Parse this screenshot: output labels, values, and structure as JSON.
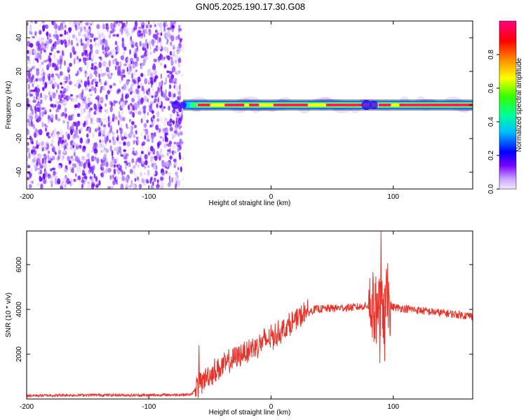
{
  "title": "GN05.2025.190.17.30.G08",
  "chart_data": [
    {
      "type": "heatmap",
      "xlabel": "Height of straight line (km)",
      "ylabel": "Frequency (Hz)",
      "xlim": [
        -200,
        165
      ],
      "ylim": [
        -50,
        50
      ],
      "xticks": [
        -200,
        -100,
        0,
        100
      ],
      "yticks": [
        -40,
        -20,
        0,
        20,
        40
      ],
      "colorbar": {
        "label": "Normalized spectral amplitude",
        "range": [
          0,
          1
        ],
        "ticks": [
          "0.0",
          "0.2",
          "0.4",
          "0.6",
          "0.8"
        ],
        "colors": [
          "#ffffff",
          "#c8a6ff",
          "#6a00ff",
          "#0000ff",
          "#00c8ff",
          "#00ff80",
          "#40ff00",
          "#ffff00",
          "#ff8000",
          "#ff0000",
          "#ff0080"
        ]
      },
      "noise_region_x": [
        -200,
        -72
      ],
      "signal_frequency_hz": 0,
      "signal_start_x": -72
    },
    {
      "type": "line",
      "xlabel": "Height of straight line (km)",
      "ylabel": "SNR (10 * v/v)",
      "xlim": [
        -200,
        165
      ],
      "ylim": [
        0,
        7500
      ],
      "xticks": [
        -200,
        -100,
        0,
        100
      ],
      "yticks": [
        2000,
        4000,
        6000
      ],
      "color": "#e8332a",
      "series_points": [
        {
          "x": -200,
          "y": 150
        },
        {
          "x": -150,
          "y": 180
        },
        {
          "x": -100,
          "y": 170
        },
        {
          "x": -65,
          "y": 200
        },
        {
          "x": -60,
          "y": 600
        },
        {
          "x": -55,
          "y": 900
        },
        {
          "x": -45,
          "y": 1300
        },
        {
          "x": -35,
          "y": 1600
        },
        {
          "x": -25,
          "y": 2000
        },
        {
          "x": -15,
          "y": 2300
        },
        {
          "x": -5,
          "y": 2600
        },
        {
          "x": 5,
          "y": 2900
        },
        {
          "x": 15,
          "y": 3300
        },
        {
          "x": 25,
          "y": 3700
        },
        {
          "x": 35,
          "y": 4000
        },
        {
          "x": 50,
          "y": 4050
        },
        {
          "x": 70,
          "y": 4100
        },
        {
          "x": 85,
          "y": 4200
        },
        {
          "x": 91,
          "y": 4200
        },
        {
          "x": 100,
          "y": 4100
        },
        {
          "x": 130,
          "y": 3900
        },
        {
          "x": 165,
          "y": 3700
        }
      ],
      "spikes": [
        {
          "x": -59,
          "y": 2400
        },
        {
          "x": 90,
          "y": 7500
        },
        {
          "x": 89,
          "y": 1600
        },
        {
          "x": 93,
          "y": 1700
        }
      ]
    }
  ]
}
